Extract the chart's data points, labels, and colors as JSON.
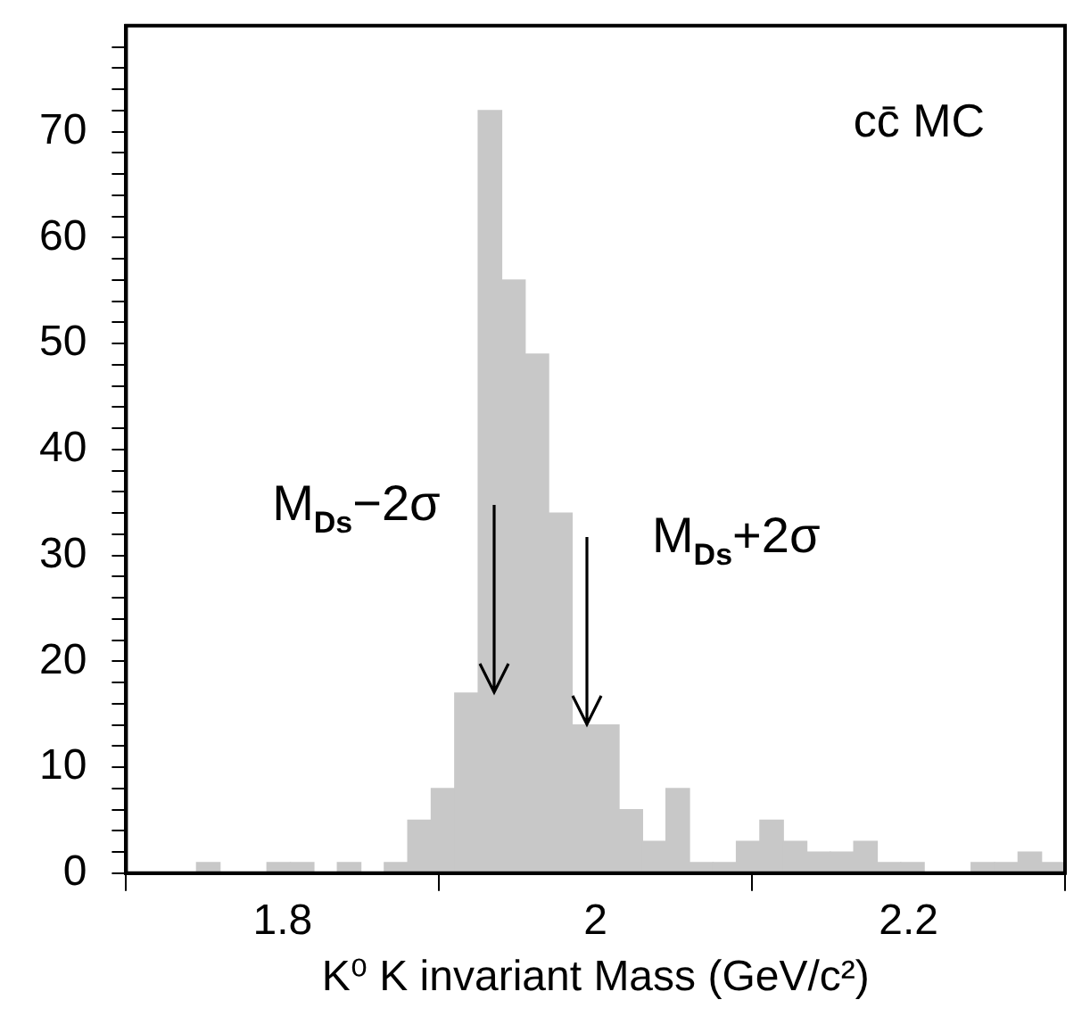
{
  "chart_data": {
    "type": "histogram",
    "xlabel": "K⁰ K invariant Mass (GeV/c²)",
    "bins": [
      1.7,
      1.715,
      1.73,
      1.745,
      1.76,
      1.775,
      1.79,
      1.805,
      1.82,
      1.835,
      1.85,
      1.865,
      1.88,
      1.895,
      1.91,
      1.925,
      1.94,
      1.955,
      1.97,
      1.985,
      2.0,
      2.015,
      2.03,
      2.045,
      2.06,
      2.075,
      2.09,
      2.105,
      2.12,
      2.135,
      2.15,
      2.165,
      2.18,
      2.195,
      2.21,
      2.225,
      2.24,
      2.255,
      2.27,
      2.285,
      2.3
    ],
    "values": [
      0,
      0,
      0,
      1,
      0,
      0,
      1,
      1,
      0,
      1,
      0,
      1,
      5,
      8,
      17,
      72,
      56,
      49,
      34,
      14,
      14,
      6,
      3,
      8,
      1,
      1,
      3,
      5,
      3,
      2,
      2,
      3,
      1,
      1,
      0,
      0,
      1,
      1,
      2,
      1
    ],
    "color": "#c8c8c8",
    "xlim": [
      1.7,
      2.3
    ],
    "xticks": [
      1.8,
      2,
      2.2
    ],
    "ylim": [
      0,
      80
    ],
    "yticks": [
      0,
      {
        "value": 2,
        "label": null
      },
      {
        "value": 4,
        "label": null
      },
      {
        "value": 6,
        "label": null
      },
      {
        "value": 8,
        "label": null
      },
      10,
      {
        "value": 12,
        "label": null
      },
      {
        "value": 14,
        "label": null
      },
      {
        "value": 16,
        "label": null
      },
      {
        "value": 18,
        "label": null
      },
      20,
      {
        "value": 22,
        "label": null
      },
      {
        "value": 24,
        "label": null
      },
      {
        "value": 26,
        "label": null
      },
      {
        "value": 28,
        "label": null
      },
      30,
      {
        "value": 32,
        "label": null
      },
      {
        "value": 34,
        "label": null
      },
      {
        "value": 36,
        "label": null
      },
      {
        "value": 38,
        "label": null
      },
      40,
      {
        "value": 42,
        "label": null
      },
      {
        "value": 44,
        "label": null
      },
      {
        "value": 46,
        "label": null
      },
      {
        "value": 48,
        "label": null
      },
      50,
      {
        "value": 52,
        "label": null
      },
      {
        "value": 54,
        "label": null
      },
      {
        "value": 56,
        "label": null
      },
      {
        "value": 58,
        "label": null
      },
      60,
      {
        "value": 62,
        "label": null
      },
      {
        "value": 64,
        "label": null
      },
      {
        "value": 66,
        "label": null
      },
      {
        "value": 68,
        "label": null
      },
      70,
      {
        "value": 72,
        "label": null
      },
      {
        "value": 74,
        "label": null
      },
      {
        "value": 76,
        "label": null
      },
      {
        "value": 78,
        "label": null
      }
    ],
    "annotations": [
      "cc̄ MC",
      {
        "text": "M$_{Ds}$−2σ",
        "x": 1.935,
        "y": 17
      },
      {
        "text": "M$_{Ds}$+2σ",
        "x": 1.995,
        "y": 14
      }
    ]
  }
}
